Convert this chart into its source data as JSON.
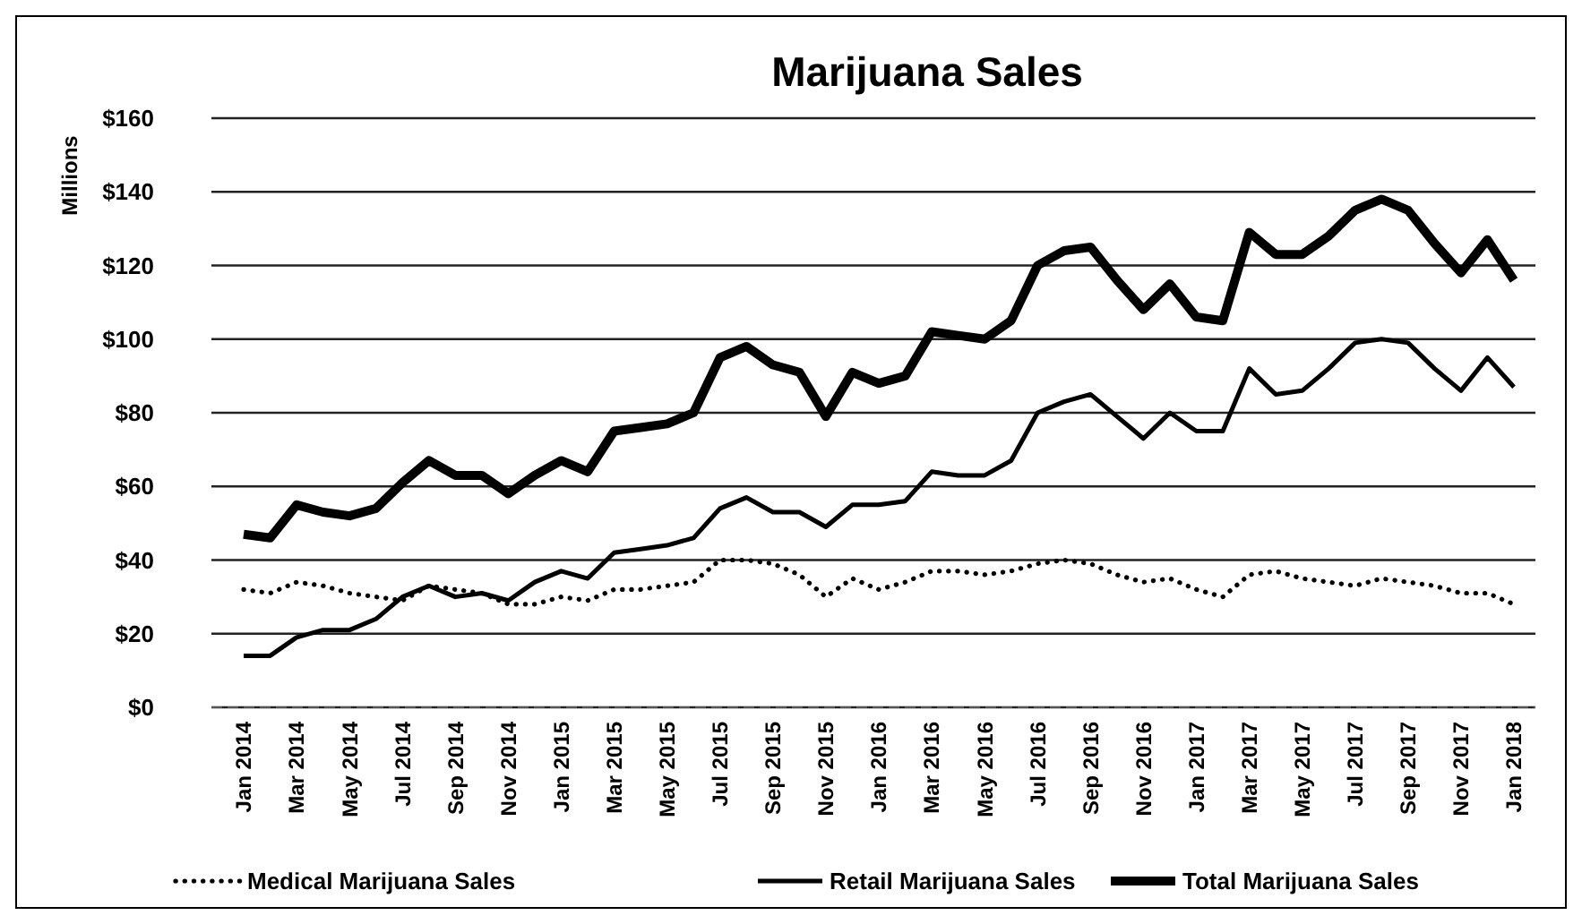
{
  "chart_data": {
    "type": "line",
    "title": "Marijuana Sales",
    "ylabel": "Millions",
    "categories": [
      "Jan 2014",
      null,
      "Mar 2014",
      null,
      "May 2014",
      null,
      "Jul 2014",
      null,
      "Sep 2014",
      null,
      "Nov 2014",
      null,
      "Jan 2015",
      null,
      "Mar 2015",
      null,
      "May 2015",
      null,
      "Jul 2015",
      null,
      "Sep 2015",
      null,
      "Nov 2015",
      null,
      "Jan 2016",
      null,
      "Mar 2016",
      null,
      "May 2016",
      null,
      "Jul 2016",
      null,
      "Sep 2016",
      null,
      "Nov 2016",
      null,
      "Jan 2017",
      null,
      "Mar 2017",
      null,
      "May 2017",
      null,
      "Jul 2017",
      null,
      "Sep 2017",
      null,
      "Nov 2017",
      null,
      "Jan 2018"
    ],
    "series": [
      {
        "name": "Medical Marijuana Sales",
        "color": "#000000",
        "line_style": "dotted",
        "values": [
          32,
          31,
          34,
          33,
          31,
          30,
          29,
          33,
          32,
          31,
          28,
          28,
          30,
          29,
          32,
          32,
          33,
          34,
          40,
          40,
          39,
          36,
          30,
          35,
          32,
          34,
          37,
          37,
          36,
          37,
          39,
          40,
          39,
          36,
          34,
          35,
          32,
          30,
          36,
          37,
          35,
          34,
          33,
          35,
          34,
          33,
          31,
          31,
          28
        ]
      },
      {
        "name": "Retail Marijuana Sales",
        "color": "#000000",
        "line_style": "solid",
        "values": [
          14,
          14,
          19,
          21,
          21,
          24,
          30,
          33,
          30,
          31,
          29,
          34,
          37,
          35,
          42,
          43,
          44,
          46,
          54,
          57,
          53,
          53,
          49,
          55,
          55,
          56,
          64,
          63,
          63,
          67,
          80,
          83,
          85,
          79,
          73,
          80,
          75,
          75,
          92,
          85,
          86,
          92,
          99,
          100,
          99,
          92,
          86,
          95,
          87
        ]
      },
      {
        "name": "Total Marijuana Sales",
        "color": "#000000",
        "line_style": "solid",
        "values": [
          47,
          46,
          55,
          53,
          52,
          54,
          61,
          67,
          63,
          63,
          58,
          63,
          67,
          64,
          75,
          76,
          77,
          80,
          95,
          98,
          93,
          91,
          79,
          91,
          88,
          90,
          102,
          101,
          100,
          105,
          120,
          124,
          125,
          116,
          108,
          115,
          106,
          105,
          129,
          123,
          123,
          128,
          135,
          138,
          135,
          126,
          118,
          127,
          116
        ]
      }
    ],
    "ylim": [
      0,
      160
    ],
    "yticks": [
      {
        "value": 0,
        "label": "$0"
      },
      {
        "value": 20,
        "label": "$20"
      },
      {
        "value": 40,
        "label": "$40"
      },
      {
        "value": 60,
        "label": "$60"
      },
      {
        "value": 80,
        "label": "$80"
      },
      {
        "value": 100,
        "label": "$100"
      },
      {
        "value": 120,
        "label": "$120"
      },
      {
        "value": 140,
        "label": "$140"
      },
      {
        "value": 160,
        "label": "$160"
      }
    ],
    "grid": "y",
    "legend": "bottom"
  }
}
